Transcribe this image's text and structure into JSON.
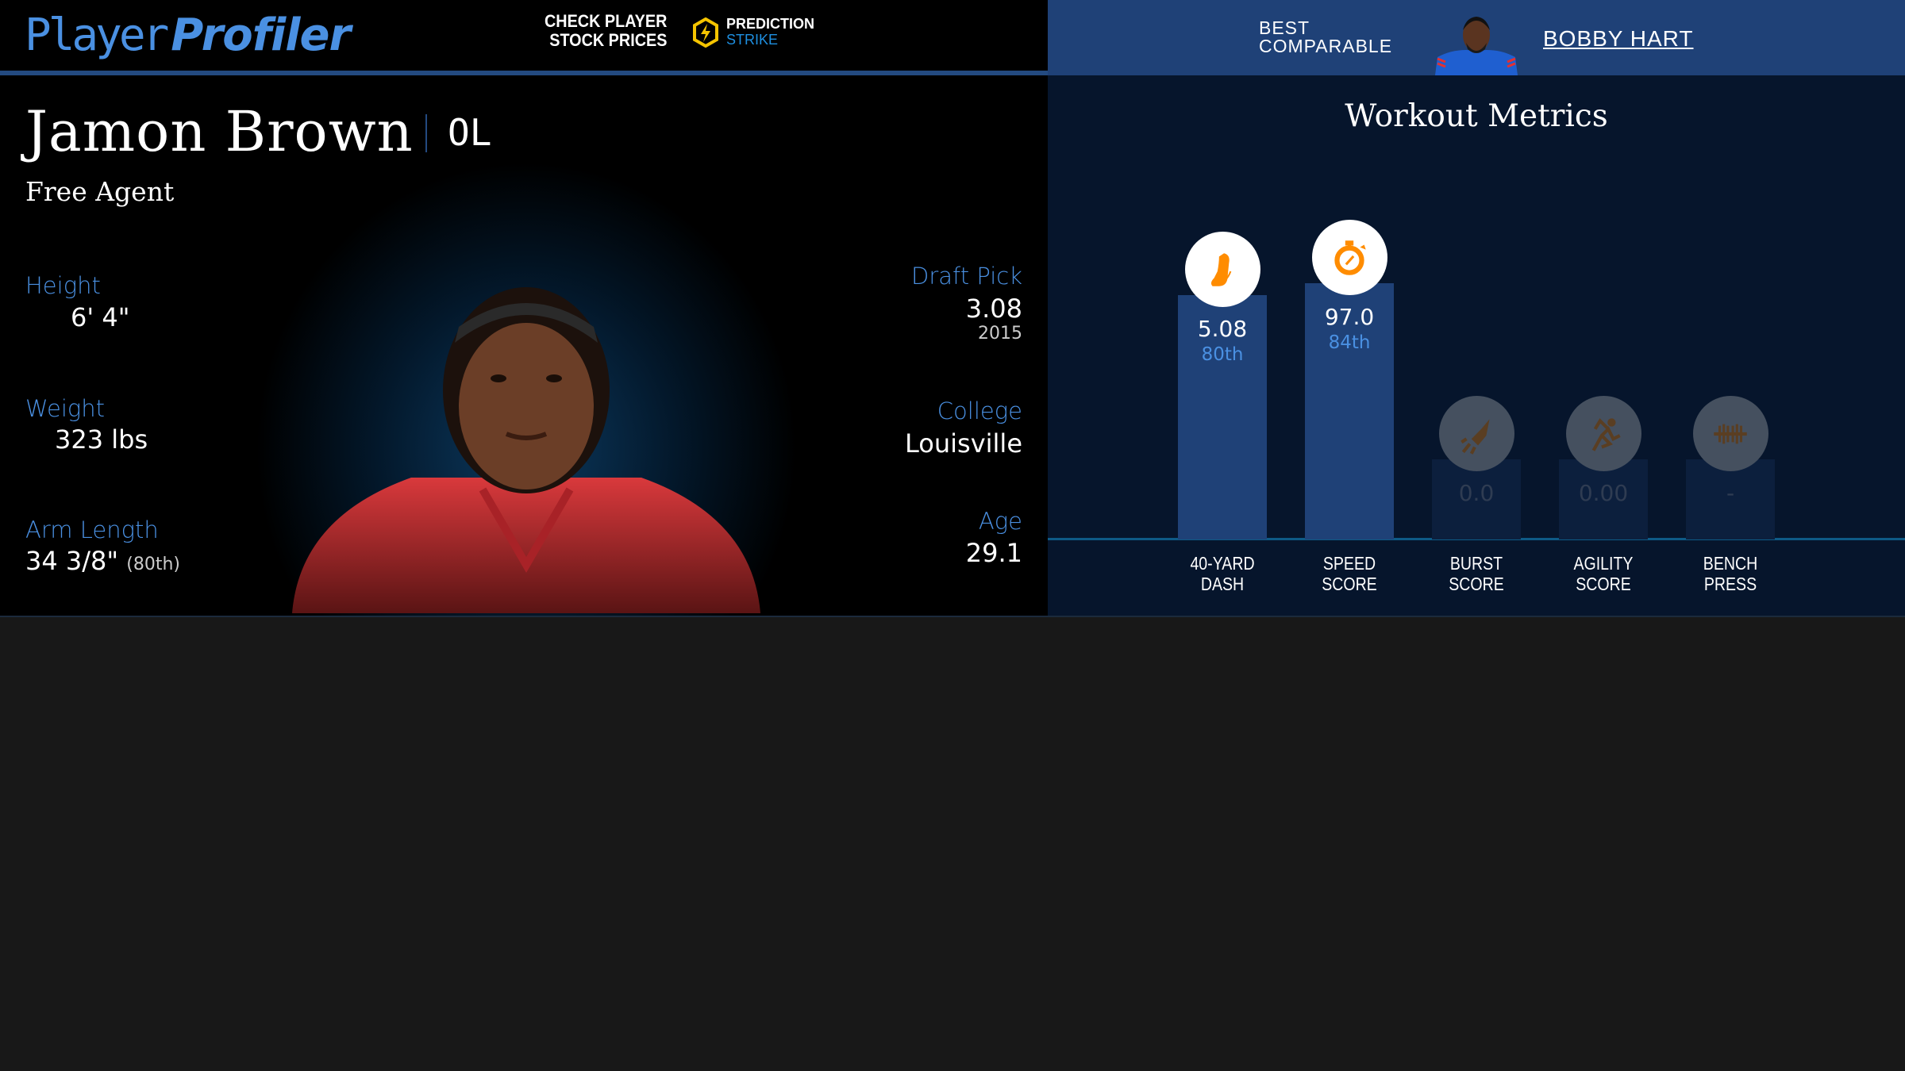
{
  "header": {
    "logo": {
      "light": "Player",
      "bold": "Profiler"
    },
    "promo": {
      "line1": "CHECK PLAYER",
      "line2": "STOCK PRICES",
      "brand1": "PREDICTION",
      "brand2": "STRIKE"
    },
    "best_comparable": {
      "label1": "BEST",
      "label2": "COMPARABLE",
      "name": "BOBBY HART"
    }
  },
  "player": {
    "name": "Jamon Brown",
    "position": "OL",
    "team": "Free Agent",
    "height_label": "Height",
    "height": "6' 4\"",
    "weight_label": "Weight",
    "weight": "323 lbs",
    "arm_label": "Arm Length",
    "arm": "34 3/8\"",
    "arm_pct": "(80th)",
    "draft_label": "Draft Pick",
    "draft": "3.08",
    "draft_year": "2015",
    "college_label": "College",
    "college": "Louisville",
    "age_label": "Age",
    "age": "29.1"
  },
  "workout": {
    "title": "Workout Metrics",
    "colors": {
      "active_bar": "#1f4177",
      "empty_bar": "#0c1f3d",
      "icon": "#ff8c00",
      "icon_inactive": "#5a3e22"
    },
    "metrics": [
      {
        "label1": "40-YARD",
        "label2": "DASH",
        "value": "5.08",
        "percentile_text": "80th",
        "percentile": 80,
        "icon": "shoe-icon",
        "active": true
      },
      {
        "label1": "SPEED",
        "label2": "SCORE",
        "value": "97.0",
        "percentile_text": "84th",
        "percentile": 84,
        "icon": "stopwatch-icon",
        "active": true
      },
      {
        "label1": "BURST",
        "label2": "SCORE",
        "value": "0.0",
        "percentile_text": "",
        "percentile": null,
        "icon": "rocket-icon",
        "active": false
      },
      {
        "label1": "AGILITY",
        "label2": "SCORE",
        "value": "0.00",
        "percentile_text": "",
        "percentile": null,
        "icon": "runner-icon",
        "active": false
      },
      {
        "label1": "BENCH",
        "label2": "PRESS",
        "value": "-",
        "percentile_text": "",
        "percentile": null,
        "icon": "dumbbell-icon",
        "active": false
      }
    ]
  }
}
